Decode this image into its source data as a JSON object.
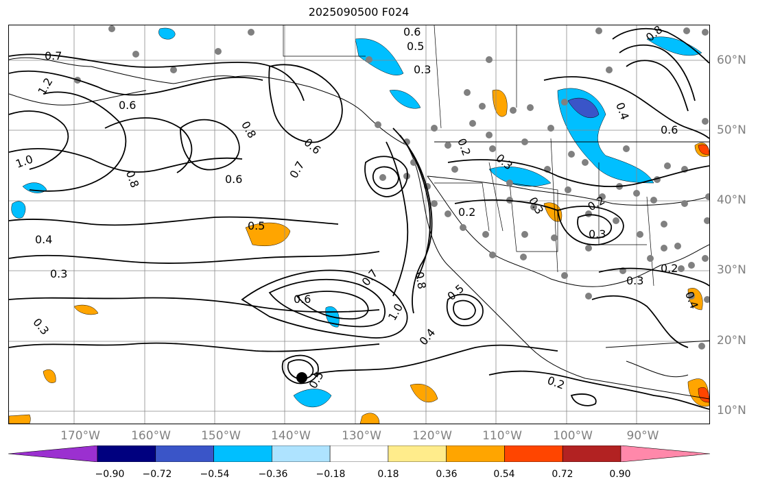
{
  "title": "2025090500 F024",
  "lon_labels": [
    "170°W",
    "160°W",
    "150°W",
    "140°W",
    "130°W",
    "120°W",
    "110°W",
    "100°W",
    "90°W"
  ],
  "lat_labels": [
    "60°N",
    "50°N",
    "40°N",
    "30°N",
    "20°N",
    "10°N"
  ],
  "contour_labels": [
    "0.7",
    "1.2",
    "0.6",
    "1.0",
    "0.8",
    "0.6",
    "0.8",
    "0.7",
    "0.6",
    "0.5",
    "0.4",
    "0.3",
    "0.6",
    "0.7",
    "0.8",
    "1.0",
    "0.5",
    "0.4",
    "0.3",
    "0.2",
    "0.3",
    "0.2",
    "0.3",
    "0.3",
    "0.2",
    "0.4",
    "0.6",
    "0.8",
    "0.5",
    "0.3",
    "0.2",
    "0.2",
    "0.6",
    "0.4",
    "0.5",
    "0.3"
  ],
  "colorbar": {
    "ticks": [
      "−0.90",
      "−0.72",
      "−0.54",
      "−0.36",
      "−0.18",
      "0.18",
      "0.36",
      "0.54",
      "0.72",
      "0.90"
    ],
    "colors": [
      "#9b30d0",
      "#00007f",
      "#3a55c8",
      "#00bfff",
      "#aee3ff",
      "#ffffff",
      "#ffec8b",
      "#ffa500",
      "#ff4500",
      "#b22222",
      "#ff88aa"
    ]
  }
}
